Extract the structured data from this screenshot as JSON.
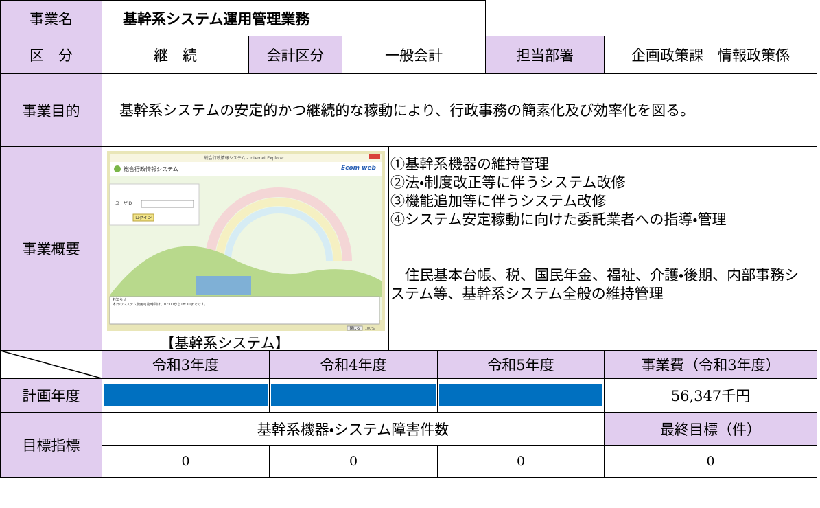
{
  "header": {
    "label": "事業名",
    "value": "基幹系システム運用管理業務"
  },
  "category": {
    "label": "区　分",
    "value": "継　続"
  },
  "accounting": {
    "label": "会計区分",
    "value": "一般会計"
  },
  "department": {
    "label": "担当部署",
    "value": "企画政策課　情報政策係"
  },
  "purpose": {
    "label": "事業目的",
    "text": "　基幹系システムの安定的かつ継続的な稼動により、行政事務の簡素化及び効率化を図る。"
  },
  "overview": {
    "label": "事業概要",
    "items": [
      "①基幹系機器の維持管理",
      "②法・制度改正等に伴うシステム改修",
      "③機能追加等に伴うシステム改修",
      "④システム安定稼動に向けた委託業者への指導・管理"
    ],
    "note": "　住民基本台帳、税、国民年金、福祉、介護・後期、内部事務システム等、基幹系システム全般の維持管理",
    "caption": "【基幹系システム】",
    "screenshot": {
      "window_title": "総合行政情報システム - Internet Explorer",
      "app_title": "総合行政情報システム",
      "brand": "Ecom web",
      "user_id_label": "ユーザID",
      "login_button": "ログイン",
      "notice_title": "お知らせ",
      "notice": "本日のシステム使用可能時間は、07:00から18:30までです。",
      "close_button": "閉じる",
      "zoom": "100%"
    }
  },
  "schedule": {
    "headers": [
      "令和3年度",
      "令和4年度",
      "令和5年度",
      "事業費（令和3年度）"
    ],
    "row_label": "計画年度",
    "cost": "56,347千円"
  },
  "target": {
    "label": "目標指標",
    "indicator": "基幹系機器・システム障害件数",
    "final_label": "最終目標（件）",
    "values": [
      0,
      0,
      0,
      0
    ]
  }
}
